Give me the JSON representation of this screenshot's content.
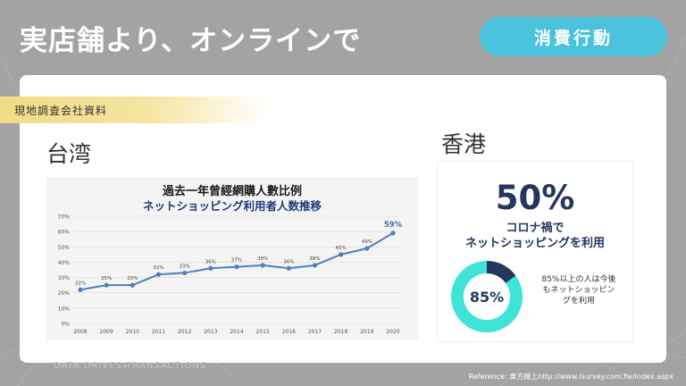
{
  "header": {
    "title": "実店舗より、オンラインで",
    "category": "消費行動"
  },
  "section_label": "現地調査会社資料",
  "taiwan": {
    "region": "台湾"
  },
  "hongkong": {
    "region": "香港",
    "big_value": "50%",
    "sub_line1": "コロナ禍で",
    "sub_line2": "ネットショッピングを利用",
    "donut_label": "85%",
    "note_line1": "85%以上の人は今後",
    "note_line2": "もネットショッピン",
    "note_line3": "グを利用"
  },
  "footer": {
    "brand": "DATA DRIVES TRANSACTIONS",
    "reference": "Reference: 東方線上http://www.isurvey.com.tw/index.aspx"
  },
  "colors": {
    "accent": "#4cc3dd",
    "navy": "#24375e",
    "line": "#4f7fbf",
    "donut_main": "#3fe3d7",
    "donut_rest": "#24375e"
  },
  "chart_data": [
    {
      "type": "line",
      "title": "過去一年曾經網購人數比例",
      "subtitle": "ネットショッピング利用者人数推移",
      "x": [
        "2008",
        "2009",
        "2010",
        "2011",
        "2012",
        "2013",
        "2014",
        "2015",
        "2016",
        "2017",
        "2018",
        "2019",
        "2020"
      ],
      "values": [
        22,
        25,
        25,
        32,
        33,
        36,
        37,
        38,
        36,
        38,
        45,
        49,
        59
      ],
      "data_labels": [
        "22%",
        "25%",
        "25%",
        "32%",
        "33%",
        "36%",
        "37%",
        "38%",
        "36%",
        "38%",
        "45%",
        "49%",
        "59%"
      ],
      "yticks": [
        "0%",
        "10%",
        "20%",
        "30%",
        "40%",
        "50%",
        "60%",
        "70%"
      ],
      "ylim": [
        0,
        70
      ],
      "grid": true
    },
    {
      "type": "pie",
      "categories": [
        "85%",
        ""
      ],
      "values": [
        85,
        15
      ]
    }
  ]
}
